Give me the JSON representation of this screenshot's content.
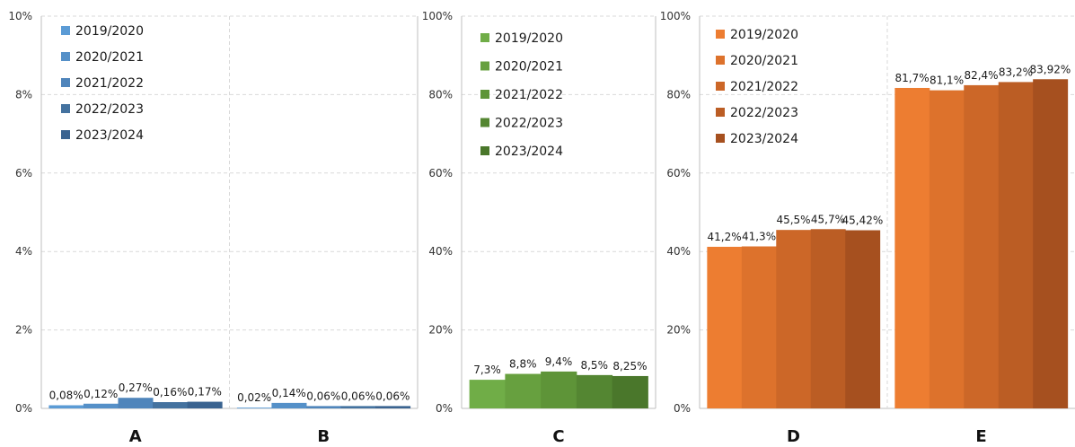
{
  "chart_data": [
    {
      "type": "bar",
      "title": "",
      "categories": [
        "A",
        "B"
      ],
      "series": [
        {
          "name": "2019/2020",
          "values": [
            0.08,
            0.02
          ]
        },
        {
          "name": "2020/2021",
          "values": [
            0.12,
            0.14
          ]
        },
        {
          "name": "2021/2022",
          "values": [
            0.27,
            0.06
          ]
        },
        {
          "name": "2022/2023",
          "values": [
            0.16,
            0.06
          ]
        },
        {
          "name": "2023/2024",
          "values": [
            0.17,
            0.06
          ]
        }
      ],
      "data_labels": [
        [
          "0,08%",
          "0,12%",
          "0,27%",
          "0,16%",
          "0,17%"
        ],
        [
          "0,02%",
          "0,14%",
          "0,06%",
          "0,06%",
          "0,06%"
        ]
      ],
      "yticks": [
        "0%",
        "2%",
        "4%",
        "6%",
        "8%",
        "10%"
      ],
      "ylim": [
        0,
        10
      ],
      "colors": [
        "#5b9bd5",
        "#5590c8",
        "#4f85bb",
        "#44729f",
        "#3a6390"
      ],
      "grid": true,
      "legend_position": "top-left"
    },
    {
      "type": "bar",
      "title": "",
      "categories": [
        "C"
      ],
      "series": [
        {
          "name": "2019/2020",
          "values": [
            7.3
          ]
        },
        {
          "name": "2020/2021",
          "values": [
            8.8
          ]
        },
        {
          "name": "2021/2022",
          "values": [
            9.4
          ]
        },
        {
          "name": "2022/2023",
          "values": [
            8.5
          ]
        },
        {
          "name": "2023/2024",
          "values": [
            8.25
          ]
        }
      ],
      "data_labels": [
        [
          "7,3%",
          "8,8%",
          "9,4%",
          "8,5%",
          "8,25%"
        ]
      ],
      "yticks": [
        "0%",
        "20%",
        "40%",
        "60%",
        "80%",
        "100%"
      ],
      "ylim": [
        0,
        100
      ],
      "colors": [
        "#70ad47",
        "#67a03f",
        "#5e9438",
        "#548632",
        "#4a772b"
      ],
      "grid": true,
      "legend_position": "top-left"
    },
    {
      "type": "bar",
      "title": "",
      "categories": [
        "D",
        "E"
      ],
      "series": [
        {
          "name": "2019/2020",
          "values": [
            41.2,
            81.7
          ]
        },
        {
          "name": "2020/2021",
          "values": [
            41.3,
            81.1
          ]
        },
        {
          "name": "2021/2022",
          "values": [
            45.5,
            82.4
          ]
        },
        {
          "name": "2022/2023",
          "values": [
            45.7,
            83.2
          ]
        },
        {
          "name": "2023/2024",
          "values": [
            45.42,
            83.92
          ]
        }
      ],
      "data_labels": [
        [
          "41,2%",
          "41,3%",
          "45,5%",
          "45,7%",
          "45,42%"
        ],
        [
          "81,7%",
          "81,1%",
          "82,4%",
          "83,2%",
          "83,92%"
        ]
      ],
      "yticks": [
        "0%",
        "20%",
        "40%",
        "60%",
        "80%",
        "100%"
      ],
      "ylim": [
        0,
        100
      ],
      "colors": [
        "#ed7d31",
        "#dd722c",
        "#cc6728",
        "#bb5d24",
        "#a6501f"
      ],
      "grid": true,
      "legend_position": "top-left"
    }
  ]
}
